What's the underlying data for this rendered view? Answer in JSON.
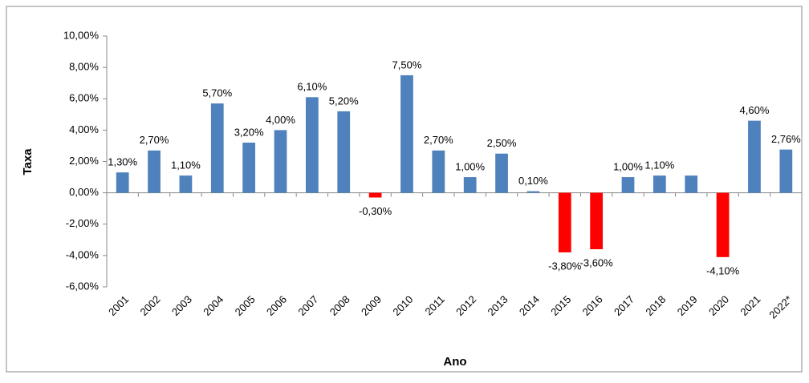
{
  "chart_data": {
    "type": "bar",
    "x_label": "Ano",
    "y_label": "Taxa",
    "categories": [
      "2001",
      "2002",
      "2003",
      "2004",
      "2005",
      "2006",
      "2007",
      "2008",
      "2009",
      "2010",
      "2011",
      "2012",
      "2013",
      "2014",
      "2015",
      "2016",
      "2017",
      "2018",
      "2019",
      "2020",
      "2021",
      "2022*"
    ],
    "values": [
      1.3,
      2.7,
      1.1,
      5.7,
      3.2,
      4.0,
      6.1,
      5.2,
      -0.3,
      7.5,
      2.7,
      1.0,
      2.5,
      0.1,
      -3.8,
      -3.6,
      1.0,
      1.1,
      1.1,
      -4.1,
      4.6,
      2.76
    ],
    "value_labels": [
      "1,30%",
      "2,70%",
      "1,10%",
      "5,70%",
      "3,20%",
      "4,00%",
      "6,10%",
      "5,20%",
      "-0,30%",
      "7,50%",
      "2,70%",
      "1,00%",
      "2,50%",
      "0,10%",
      "-3,80%",
      "-3,60%",
      "1,00%",
      "1,10%",
      null,
      "-4,10%",
      "4,60%",
      "2,76%"
    ],
    "colors": [
      "#4f81bd",
      "#4f81bd",
      "#4f81bd",
      "#4f81bd",
      "#4f81bd",
      "#4f81bd",
      "#4f81bd",
      "#4f81bd",
      "#ff0000",
      "#4f81bd",
      "#4f81bd",
      "#4f81bd",
      "#4f81bd",
      "#4f81bd",
      "#ff0000",
      "#ff0000",
      "#4f81bd",
      "#4f81bd",
      "#4f81bd",
      "#ff0000",
      "#4f81bd",
      "#4f81bd"
    ],
    "ylim": [
      -6,
      10
    ],
    "yticks": [
      {
        "value": -6,
        "label": "-6,00%"
      },
      {
        "value": -4,
        "label": "-4,00%"
      },
      {
        "value": -2,
        "label": "-2,00%"
      },
      {
        "value": 0,
        "label": "0,00%"
      },
      {
        "value": 2,
        "label": "2,00%"
      },
      {
        "value": 4,
        "label": "4,00%"
      },
      {
        "value": 6,
        "label": "6,00%"
      },
      {
        "value": 8,
        "label": "8,00%"
      },
      {
        "value": 10,
        "label": "10,00%"
      }
    ],
    "grid": false
  }
}
